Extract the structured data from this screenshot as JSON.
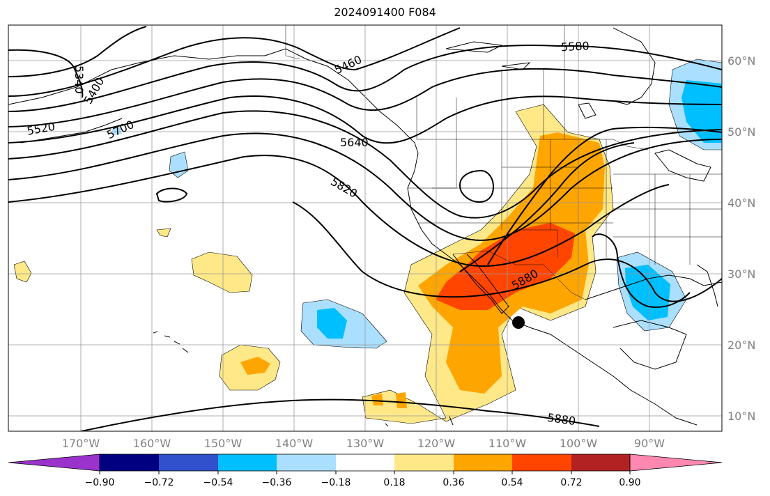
{
  "title": "2024091400 F084",
  "map": {
    "lon_labels": [
      "170°W",
      "160°W",
      "150°W",
      "140°W",
      "130°W",
      "120°W",
      "110°W",
      "100°W",
      "90°W"
    ],
    "lat_labels": [
      "60°N",
      "50°N",
      "40°N",
      "30°N",
      "20°N",
      "10°N"
    ],
    "contour_labels": [
      "5340",
      "5400",
      "5460",
      "5520",
      "5580",
      "5640",
      "5700",
      "5820",
      "5880",
      "5880"
    ],
    "marker": "storm-center-dot",
    "tick_label_color": "#808080"
  },
  "colorbar": {
    "ticks": [
      "−0.90",
      "−0.72",
      "−0.54",
      "−0.36",
      "−0.18",
      "0.18",
      "0.36",
      "0.54",
      "0.72",
      "0.90"
    ],
    "colors": [
      "#9933cc",
      "#000080",
      "#3050cc",
      "#00bfff",
      "#aadfff",
      "#ffffff",
      "#ffe888",
      "#ffa500",
      "#ff4500",
      "#b22222",
      "#ff88b0"
    ]
  }
}
